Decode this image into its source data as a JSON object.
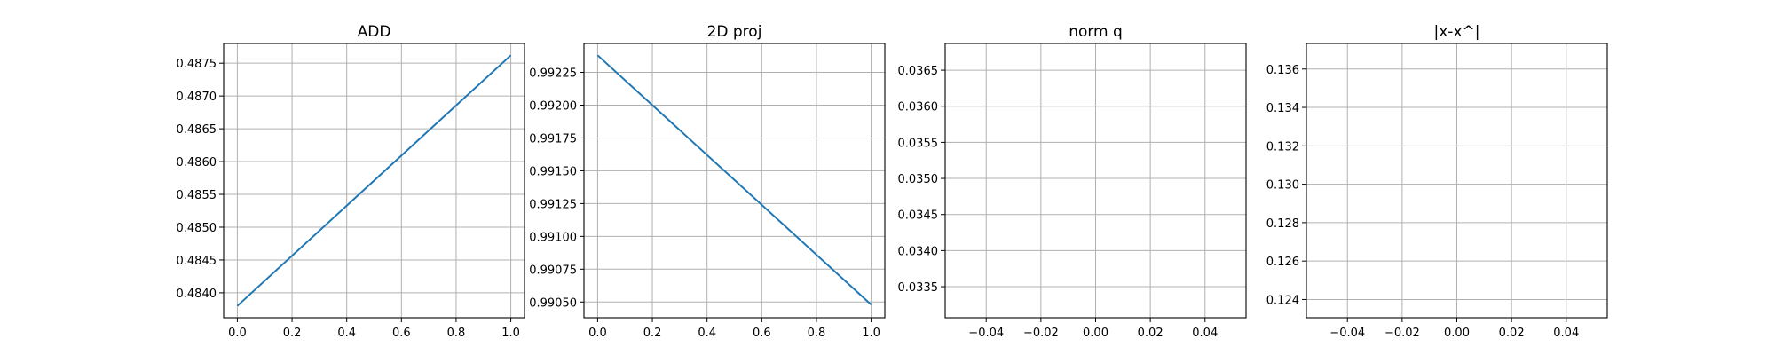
{
  "chart_data": [
    {
      "type": "line",
      "title": "ADD",
      "xlabel": "",
      "ylabel": "",
      "grid": true,
      "xlim": [
        -0.05,
        1.05
      ],
      "ylim": [
        0.48362,
        0.4878
      ],
      "xticks": [
        0.0,
        0.2,
        0.4,
        0.6,
        0.8,
        1.0
      ],
      "xtick_labels": [
        "0.0",
        "0.2",
        "0.4",
        "0.6",
        "0.8",
        "1.0"
      ],
      "yticks": [
        0.484,
        0.4845,
        0.485,
        0.4855,
        0.486,
        0.4865,
        0.487,
        0.4875
      ],
      "ytick_labels": [
        "0.4840",
        "0.4845",
        "0.4850",
        "0.4855",
        "0.4860",
        "0.4865",
        "0.4870",
        "0.4875"
      ],
      "series": [
        {
          "x": [
            0,
            1
          ],
          "y": [
            0.4838,
            0.48762
          ],
          "color": "#1f77b4"
        }
      ]
    },
    {
      "type": "line",
      "title": "2D proj",
      "xlabel": "",
      "ylabel": "",
      "grid": true,
      "xlim": [
        -0.05,
        1.05
      ],
      "ylim": [
        0.99038,
        0.99247
      ],
      "xticks": [
        0.0,
        0.2,
        0.4,
        0.6,
        0.8,
        1.0
      ],
      "xtick_labels": [
        "0.0",
        "0.2",
        "0.4",
        "0.6",
        "0.8",
        "1.0"
      ],
      "yticks": [
        0.9905,
        0.99075,
        0.991,
        0.99125,
        0.9915,
        0.99175,
        0.992,
        0.99225
      ],
      "ytick_labels": [
        "0.99050",
        "0.99075",
        "0.99100",
        "0.99125",
        "0.99150",
        "0.99175",
        "0.99200",
        "0.99225"
      ],
      "series": [
        {
          "x": [
            0,
            1
          ],
          "y": [
            0.99238,
            0.99048
          ],
          "color": "#1f77b4"
        }
      ]
    },
    {
      "type": "line",
      "title": "norm q",
      "xlabel": "",
      "ylabel": "",
      "grid": true,
      "xlim": [
        -0.055,
        0.055
      ],
      "ylim": [
        0.03307,
        0.03687
      ],
      "xticks": [
        -0.04,
        -0.02,
        0.0,
        0.02,
        0.04
      ],
      "xtick_labels": [
        "−0.04",
        "−0.02",
        "0.00",
        "0.02",
        "0.04"
      ],
      "yticks": [
        0.0335,
        0.034,
        0.0345,
        0.035,
        0.0355,
        0.036,
        0.0365
      ],
      "ytick_labels": [
        "0.0335",
        "0.0340",
        "0.0345",
        "0.0350",
        "0.0355",
        "0.0360",
        "0.0365"
      ],
      "series": []
    },
    {
      "type": "line",
      "title": "|x-x^|",
      "xlabel": "",
      "ylabel": "",
      "grid": true,
      "xlim": [
        -0.055,
        0.055
      ],
      "ylim": [
        0.12305,
        0.13733
      ],
      "xticks": [
        -0.04,
        -0.02,
        0.0,
        0.02,
        0.04
      ],
      "xtick_labels": [
        "−0.04",
        "−0.02",
        "0.00",
        "0.02",
        "0.04"
      ],
      "yticks": [
        0.124,
        0.126,
        0.128,
        0.13,
        0.132,
        0.134,
        0.136
      ],
      "ytick_labels": [
        "0.124",
        "0.126",
        "0.128",
        "0.130",
        "0.132",
        "0.134",
        "0.136"
      ],
      "series": []
    }
  ]
}
